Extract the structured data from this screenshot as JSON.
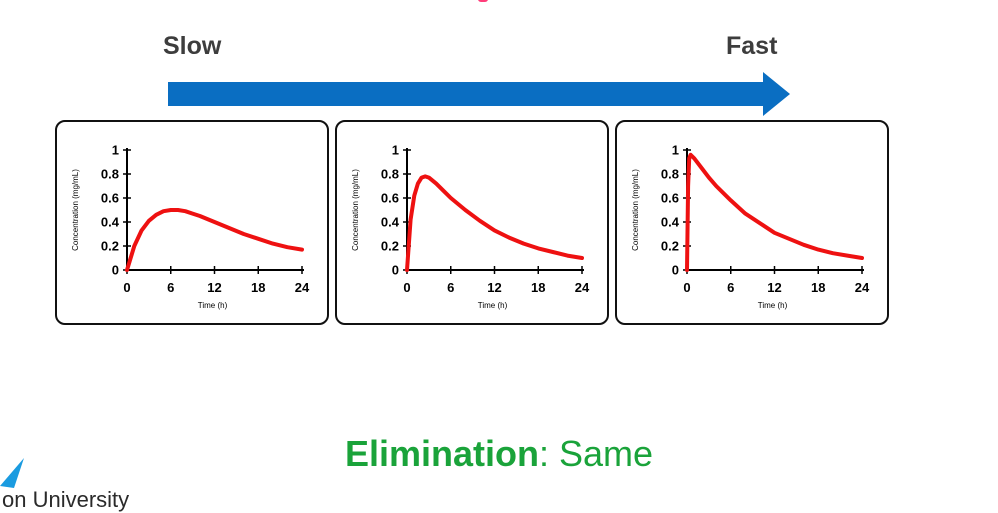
{
  "header": {
    "left_label": "Slow",
    "right_label": "Fast",
    "arrow_color": "#0a6ec2"
  },
  "chart_data": [
    {
      "type": "line",
      "xlabel": "Time (h)",
      "ylabel": "Concentration (mg/mL)",
      "xlim": [
        0,
        24
      ],
      "ylim": [
        0,
        1
      ],
      "xticks": [
        "0",
        "6",
        "12",
        "18",
        "24"
      ],
      "yticks": [
        "0",
        "0.2",
        "0.4",
        "0.6",
        "0.8",
        "1"
      ],
      "line_color": "#ee1111",
      "series": [
        {
          "x": [
            0,
            1,
            2,
            3,
            4,
            5,
            6,
            7,
            8,
            9,
            10,
            12,
            14,
            16,
            18,
            20,
            22,
            24
          ],
          "values": [
            0,
            0.2,
            0.33,
            0.41,
            0.46,
            0.49,
            0.5,
            0.5,
            0.49,
            0.47,
            0.45,
            0.4,
            0.35,
            0.3,
            0.26,
            0.22,
            0.19,
            0.17
          ]
        }
      ]
    },
    {
      "type": "line",
      "xlabel": "Time (h)",
      "ylabel": "Concentration (mg/mL)",
      "xlim": [
        0,
        24
      ],
      "ylim": [
        0,
        1
      ],
      "xticks": [
        "0",
        "6",
        "12",
        "18",
        "24"
      ],
      "yticks": [
        "0",
        "0.2",
        "0.4",
        "0.6",
        "0.8",
        "1"
      ],
      "line_color": "#ee1111",
      "series": [
        {
          "x": [
            0,
            0.5,
            1,
            1.5,
            2,
            2.5,
            3,
            4,
            5,
            6,
            8,
            10,
            12,
            14,
            16,
            18,
            20,
            22,
            24
          ],
          "values": [
            0,
            0.42,
            0.62,
            0.72,
            0.77,
            0.78,
            0.77,
            0.72,
            0.66,
            0.6,
            0.5,
            0.41,
            0.33,
            0.27,
            0.22,
            0.18,
            0.15,
            0.12,
            0.1
          ]
        }
      ]
    },
    {
      "type": "line",
      "xlabel": "Time (h)",
      "ylabel": "Concentration (mg/mL)",
      "xlim": [
        0,
        24
      ],
      "ylim": [
        0,
        1
      ],
      "xticks": [
        "0",
        "6",
        "12",
        "18",
        "24"
      ],
      "yticks": [
        "0",
        "0.2",
        "0.4",
        "0.6",
        "0.8",
        "1"
      ],
      "line_color": "#ee1111",
      "series": [
        {
          "x": [
            0,
            0.15,
            0.3,
            0.5,
            1,
            2,
            3,
            4,
            6,
            8,
            10,
            12,
            14,
            16,
            18,
            20,
            22,
            24
          ],
          "values": [
            0,
            0.7,
            0.93,
            0.96,
            0.93,
            0.85,
            0.77,
            0.7,
            0.58,
            0.47,
            0.39,
            0.31,
            0.26,
            0.21,
            0.17,
            0.14,
            0.12,
            0.1
          ]
        }
      ]
    }
  ],
  "caption": {
    "bold": "Elimination",
    "rest": ": Same",
    "color": "#1aa33a"
  },
  "footer": {
    "university_text": "on University",
    "logo_icon": "university-logo-icon",
    "logo_color": "#1a9be0"
  }
}
